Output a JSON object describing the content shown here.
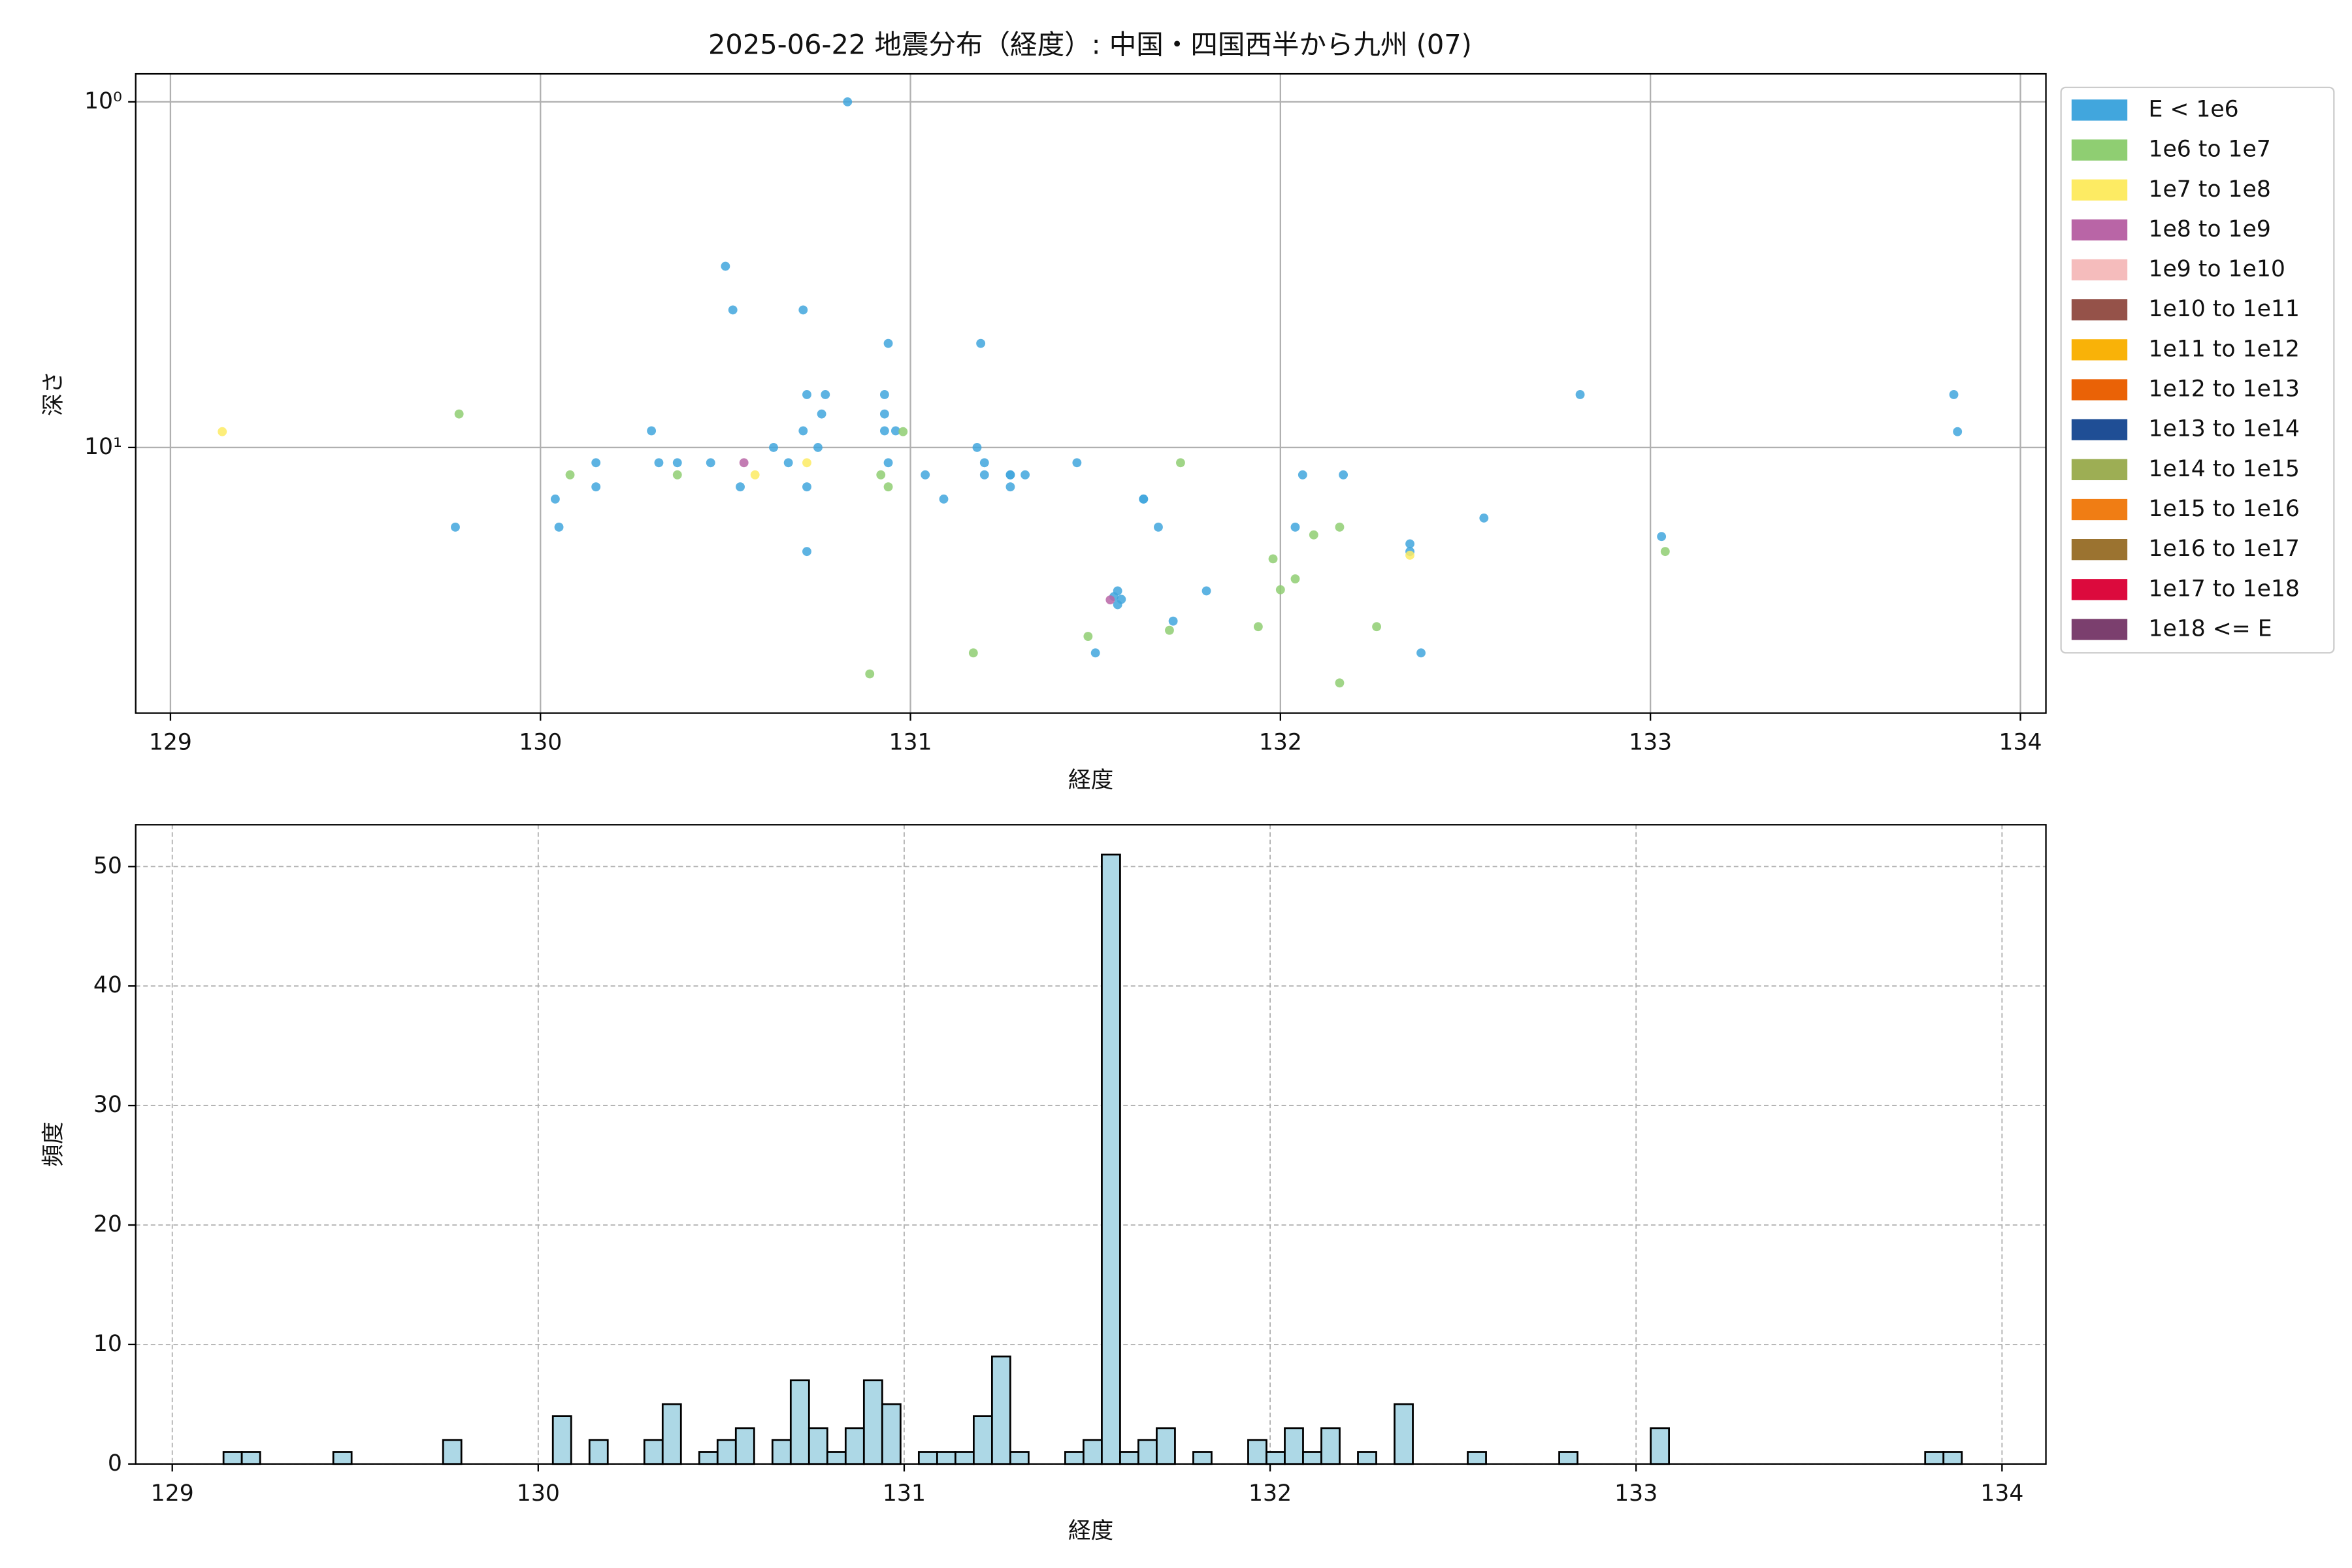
{
  "chart_data": [
    {
      "type": "scatter",
      "title": "2025-06-22 地震分布（経度）: 中国・四国西半から九州 (07)",
      "x_label": "経度",
      "y_label": "深さ",
      "log_y": true,
      "y_inverted": true,
      "grid": true,
      "legend": "outside-right",
      "xlim": [
        128.906,
        134.069
      ],
      "xticks": [
        129,
        130,
        131,
        132,
        133,
        134
      ],
      "ylim": [
        0.83,
        58.7
      ],
      "yticks": [
        {
          "value": 1,
          "label": "10⁰"
        },
        {
          "value": 10,
          "label": "10¹"
        }
      ],
      "series": [
        {
          "name": "E < 1e6",
          "color": "#41a6dd",
          "x": [
            130.83,
            130.5,
            130.52,
            130.71,
            130.94,
            131.19,
            130.72,
            130.77,
            130.93,
            130.93,
            130.76,
            130.3,
            130.71,
            130.93,
            130.96,
            130.63,
            130.75,
            131.18,
            132.81,
            133.82,
            133.83,
            130.15,
            130.32,
            130.37,
            130.46,
            130.67,
            130.94,
            131.2,
            131.45,
            131.04,
            131.2,
            131.27,
            131.27,
            131.31,
            132.06,
            132.17,
            130.15,
            130.54,
            130.72,
            131.27,
            130.04,
            131.09,
            131.63,
            131.63,
            129.77,
            130.05,
            131.67,
            132.04,
            132.55,
            133.03,
            132.35,
            132.35,
            130.72,
            131.8,
            131.71,
            131.56,
            131.55,
            131.56,
            131.57,
            131.5,
            132.38
          ],
          "y": [
            1.0,
            2.99,
            4.0,
            4.0,
            5.0,
            5.0,
            7.03,
            7.03,
            7.03,
            8.0,
            8.0,
            8.95,
            8.95,
            8.95,
            8.95,
            10,
            10,
            10,
            7.03,
            7.03,
            9.0,
            11.07,
            11.07,
            11.07,
            11.07,
            11.07,
            11.07,
            11.07,
            11.07,
            12.0,
            12.0,
            12.0,
            12.0,
            12.0,
            12.0,
            12.0,
            13.0,
            13.0,
            13.0,
            13.0,
            14.1,
            14.1,
            14.1,
            14.1,
            17.0,
            17.0,
            17.0,
            17.0,
            16.0,
            18.1,
            19.0,
            20.0,
            20.0,
            26.0,
            31.8,
            26.0,
            27.0,
            28.5,
            27.5,
            39.3,
            39.3
          ]
        },
        {
          "name": "1e6 to 1e7",
          "color": "#8fce72",
          "x": [
            129.78,
            130.08,
            130.37,
            130.92,
            130.94,
            130.98,
            131.73,
            132.09,
            132.16,
            131.98,
            132.04,
            132.0,
            133.04,
            131.94,
            131.7,
            132.26,
            131.48,
            131.17,
            130.89,
            132.16
          ],
          "y": [
            8.0,
            12.0,
            12.0,
            12.0,
            13.0,
            9.0,
            11.07,
            17.9,
            17.0,
            21.0,
            24.0,
            25.8,
            20.0,
            33.0,
            33.8,
            33.0,
            35.2,
            39.3,
            45.2,
            48.0
          ]
        },
        {
          "name": "1e7 to 1e8",
          "color": "#fdeb63",
          "x": [
            129.14,
            130.58,
            130.72,
            132.35
          ],
          "y": [
            9.0,
            12.0,
            11.07,
            20.5
          ]
        },
        {
          "name": "1e8 to 1e9",
          "color": "#b965a6",
          "x": [
            130.55,
            131.54
          ],
          "y": [
            11.07,
            27.6
          ]
        },
        {
          "name": "1e9 to 1e10",
          "color": "#f5bcbc",
          "x": [],
          "y": []
        },
        {
          "name": "1e10 to 1e11",
          "color": "#955249",
          "x": [],
          "y": []
        },
        {
          "name": "1e11 to 1e12",
          "color": "#f9b208",
          "x": [],
          "y": []
        },
        {
          "name": "1e12 to 1e13",
          "color": "#ea6206",
          "x": [],
          "y": []
        },
        {
          "name": "1e13 to 1e14",
          "color": "#1f4e95",
          "x": [],
          "y": []
        },
        {
          "name": "1e14 to 1e15",
          "color": "#9dae54",
          "x": [],
          "y": []
        },
        {
          "name": "1e15 to 1e16",
          "color": "#f07d14",
          "x": [],
          "y": []
        },
        {
          "name": "1e16 to 1e17",
          "color": "#9b7330",
          "x": [],
          "y": []
        },
        {
          "name": "1e17 to 1e18",
          "color": "#dc0a3d",
          "x": [],
          "y": []
        },
        {
          "name": "1e18 <= E",
          "color": "#7b3f6e",
          "x": [],
          "y": []
        }
      ]
    },
    {
      "type": "histogram",
      "x_label": "経度",
      "y_label": "頻度",
      "grid": true,
      "color": "#add8e6",
      "xlim": [
        128.9,
        134.12
      ],
      "xticks": [
        129,
        130,
        131,
        132,
        133,
        134
      ],
      "ylim": [
        0,
        53.5
      ],
      "yticks": [
        0,
        10,
        20,
        30,
        40,
        50
      ],
      "bins": [
        129.14,
        129.19,
        129.24,
        129.29,
        129.34,
        129.39,
        129.44,
        129.49,
        129.54,
        129.59,
        129.64,
        129.69,
        129.74,
        129.79,
        129.84,
        129.89,
        129.94,
        129.99,
        130.04,
        130.09,
        130.14,
        130.19,
        130.24,
        130.29,
        130.34,
        130.39,
        130.44,
        130.49,
        130.54,
        130.59,
        130.64,
        130.69,
        130.74,
        130.79,
        130.84,
        130.89,
        130.94,
        130.99,
        131.04,
        131.09,
        131.14,
        131.19,
        131.24,
        131.29,
        131.34,
        131.39,
        131.44,
        131.49,
        131.54,
        131.59,
        131.64,
        131.69,
        131.74,
        131.79,
        131.84,
        131.89,
        131.94,
        131.99,
        132.04,
        132.09,
        132.14,
        132.19,
        132.24,
        132.29,
        132.34,
        132.39,
        132.44,
        132.49,
        132.54,
        132.59,
        132.64,
        132.69,
        132.74,
        132.79,
        132.84,
        132.89,
        132.94,
        132.99,
        133.04,
        133.09,
        133.14,
        133.19,
        133.24,
        133.29,
        133.34,
        133.39,
        133.44,
        133.49,
        133.54,
        133.59,
        133.64,
        133.69,
        133.74,
        133.79,
        133.84,
        133.89
      ],
      "counts": [
        1,
        1,
        0,
        0,
        0,
        0,
        1,
        0,
        0,
        0,
        0,
        0,
        2,
        0,
        0,
        0,
        0,
        0,
        4,
        0,
        2,
        0,
        0,
        2,
        5,
        0,
        1,
        2,
        3,
        0,
        2,
        7,
        3,
        1,
        3,
        7,
        5,
        0,
        1,
        1,
        1,
        4,
        9,
        1,
        0,
        0,
        1,
        2,
        51,
        1,
        2,
        3,
        0,
        1,
        0,
        0,
        2,
        1,
        3,
        1,
        3,
        0,
        1,
        0,
        5,
        0,
        0,
        0,
        1,
        0,
        0,
        0,
        0,
        1,
        0,
        0,
        0,
        0,
        3,
        0,
        0,
        0,
        0,
        0,
        0,
        0,
        0,
        0,
        0,
        0,
        0,
        0,
        0,
        1,
        1
      ]
    }
  ]
}
